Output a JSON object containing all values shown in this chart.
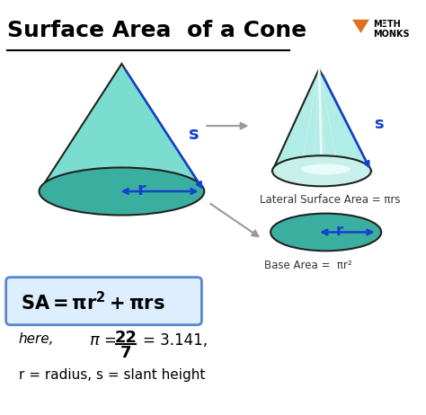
{
  "title": "Surface Area  of a Cone",
  "bg_color": "#ffffff",
  "title_color": "#000000",
  "title_fontsize": 18,
  "cone_fill": "#7addd0",
  "cone_edge": "#222222",
  "base_fill": "#3aafa0",
  "cone2_fill": "#b0ede7",
  "cone2_base_fill": "#c8f0eb",
  "arrow_color": "#1540cc",
  "formula_box_color": "#ddeeff",
  "formula_box_edge": "#5588cc",
  "lateral_label": "Lateral Surface Area = πrs",
  "base_label": "Base Area =  πr²",
  "def_line": "r = radius, s = slant height",
  "logo_triangle_color": "#e07020",
  "logo_text_color": "#000000"
}
